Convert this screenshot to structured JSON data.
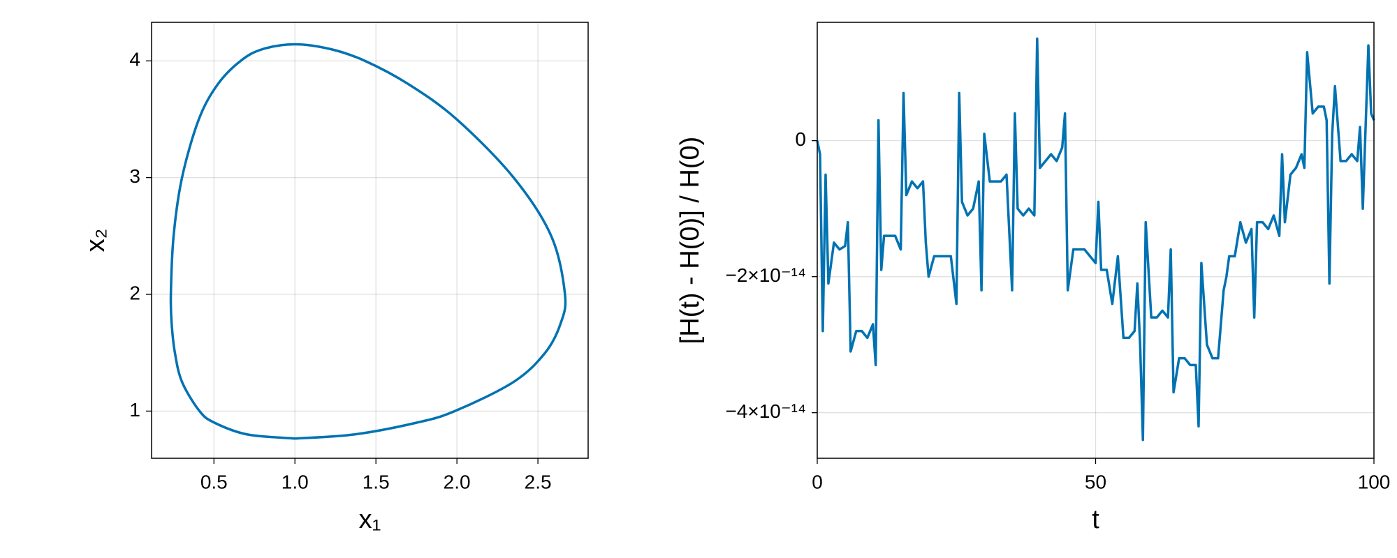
{
  "chart_data": [
    {
      "type": "line",
      "xlabel": "x₁",
      "ylabel": "x₂",
      "color": "#0072b2",
      "grid": true,
      "xlim": [
        0.115,
        2.81
      ],
      "ylim": [
        0.596,
        4.33
      ],
      "xticks": [
        0.5,
        {
          "value": 1,
          "label": "1.0"
        },
        1.5,
        {
          "value": 2,
          "label": "2.0"
        },
        2.5
      ],
      "yticks": [
        1,
        2,
        3,
        4
      ],
      "x": [
        1,
        1.366,
        1.749,
        1.987,
        2.35,
        2.545,
        2.64,
        2.667,
        2.582,
        2.35,
        1.998,
        1.701,
        1.432,
        1.222,
        1,
        0.8,
        0.665,
        0.524,
        0.407,
        0.303,
        0.251,
        0.234,
        0.239,
        0.259,
        0.303,
        0.411,
        0.504,
        0.706,
        1
      ],
      "values": [
        0.765,
        0.8,
        0.9,
        1.0,
        1.25,
        1.5,
        1.75,
        2,
        2.5,
        3,
        3.5,
        3.8,
        4.0,
        4.1,
        4.142,
        4.1,
        4.0,
        3.8,
        3.5,
        3,
        2.5,
        2,
        1.75,
        1.5,
        1.25,
        1,
        0.9,
        0.8,
        0.765
      ]
    },
    {
      "type": "line",
      "xlabel": "t",
      "ylabel": "[H(t) - H(0)] / H(0)",
      "color": "#0072b2",
      "grid": true,
      "xlim": [
        0,
        100
      ],
      "ylim": [
        -4.67e-14,
        1.74e-14
      ],
      "xticks": [
        0,
        50,
        100
      ],
      "yticks": [
        {
          "value": -4e-14,
          "label": "−4×10⁻¹⁴"
        },
        {
          "value": -2e-14,
          "label": "−2×10⁻¹⁴"
        },
        0
      ],
      "x": [
        0,
        0.5,
        1,
        1.5,
        2,
        3,
        4,
        5,
        5.5,
        6,
        7,
        8,
        9,
        10,
        10.5,
        11,
        11.5,
        12,
        14,
        15,
        15.5,
        16,
        17,
        18,
        19,
        19.5,
        20,
        21,
        23,
        24,
        25,
        25.5,
        26,
        27,
        28,
        29,
        29.5,
        30,
        31,
        33,
        34,
        35,
        35.5,
        36,
        37,
        38,
        39,
        39.5,
        40,
        41,
        42,
        43,
        44,
        44.5,
        45,
        46,
        48,
        49,
        50,
        50.5,
        51,
        52,
        53,
        54,
        55,
        56,
        57,
        57.5,
        58,
        58.5,
        59,
        60,
        61,
        62,
        63,
        63.5,
        64,
        65,
        66,
        67,
        68,
        68.5,
        69,
        70,
        71,
        72,
        73,
        73.5,
        74,
        75,
        76,
        77,
        78,
        78.5,
        79,
        80,
        81,
        82,
        83,
        83.5,
        84,
        85,
        86,
        87,
        87.5,
        88,
        89,
        90,
        91,
        91.5,
        92,
        92.5,
        93,
        94,
        95,
        96,
        97,
        97.5,
        98,
        99,
        99.5,
        100
      ],
      "values": [
        0,
        -2e-15,
        -2.8e-14,
        -5e-15,
        -2.1e-14,
        -1.5e-14,
        -1.6e-14,
        -1.55e-14,
        -1.2e-14,
        -3.1e-14,
        -2.8e-14,
        -2.8e-14,
        -2.9e-14,
        -2.7e-14,
        -3.3e-14,
        3e-15,
        -1.9e-14,
        -1.4e-14,
        -1.4e-14,
        -1.6e-14,
        7e-15,
        -8e-15,
        -6e-15,
        -7e-15,
        -6e-15,
        -1.5e-14,
        -2e-14,
        -1.7e-14,
        -1.7e-14,
        -1.7e-14,
        -2.4e-14,
        7e-15,
        -9e-15,
        -1.1e-14,
        -1e-14,
        -6e-15,
        -2.2e-14,
        1e-15,
        -6e-15,
        -6e-15,
        -5e-15,
        -2.2e-14,
        4e-15,
        -1e-14,
        -1.1e-14,
        -1e-14,
        -1.1e-14,
        1.5e-14,
        -4e-15,
        -3e-15,
        -2e-15,
        -3e-15,
        -1e-15,
        4e-15,
        -2.2e-14,
        -1.6e-14,
        -1.6e-14,
        -1.7e-14,
        -1.8e-14,
        -9e-15,
        -1.9e-14,
        -1.9e-14,
        -2.4e-14,
        -1.7e-14,
        -2.9e-14,
        -2.9e-14,
        -2.8e-14,
        -2.1e-14,
        -3e-14,
        -4.4e-14,
        -1.2e-14,
        -2.6e-14,
        -2.6e-14,
        -2.5e-14,
        -2.6e-14,
        -1.6e-14,
        -3.7e-14,
        -3.2e-14,
        -3.2e-14,
        -3.3e-14,
        -3.3e-14,
        -4.2e-14,
        -1.8e-14,
        -3e-14,
        -3.2e-14,
        -3.2e-14,
        -2.2e-14,
        -2e-14,
        -1.7e-14,
        -1.7e-14,
        -1.2e-14,
        -1.5e-14,
        -1.3e-14,
        -2.6e-14,
        -1.2e-14,
        -1.2e-14,
        -1.3e-14,
        -1.1e-14,
        -1.4e-14,
        -2e-15,
        -1.2e-14,
        -5e-15,
        -4e-15,
        -2e-15,
        -4e-15,
        1.3e-14,
        4e-15,
        5e-15,
        5e-15,
        3e-15,
        -2.1e-14,
        1e-15,
        8e-15,
        -3e-15,
        -3e-15,
        -2e-15,
        -3e-15,
        2e-15,
        -1e-14,
        1.4e-14,
        4e-15,
        3e-15
      ]
    }
  ]
}
